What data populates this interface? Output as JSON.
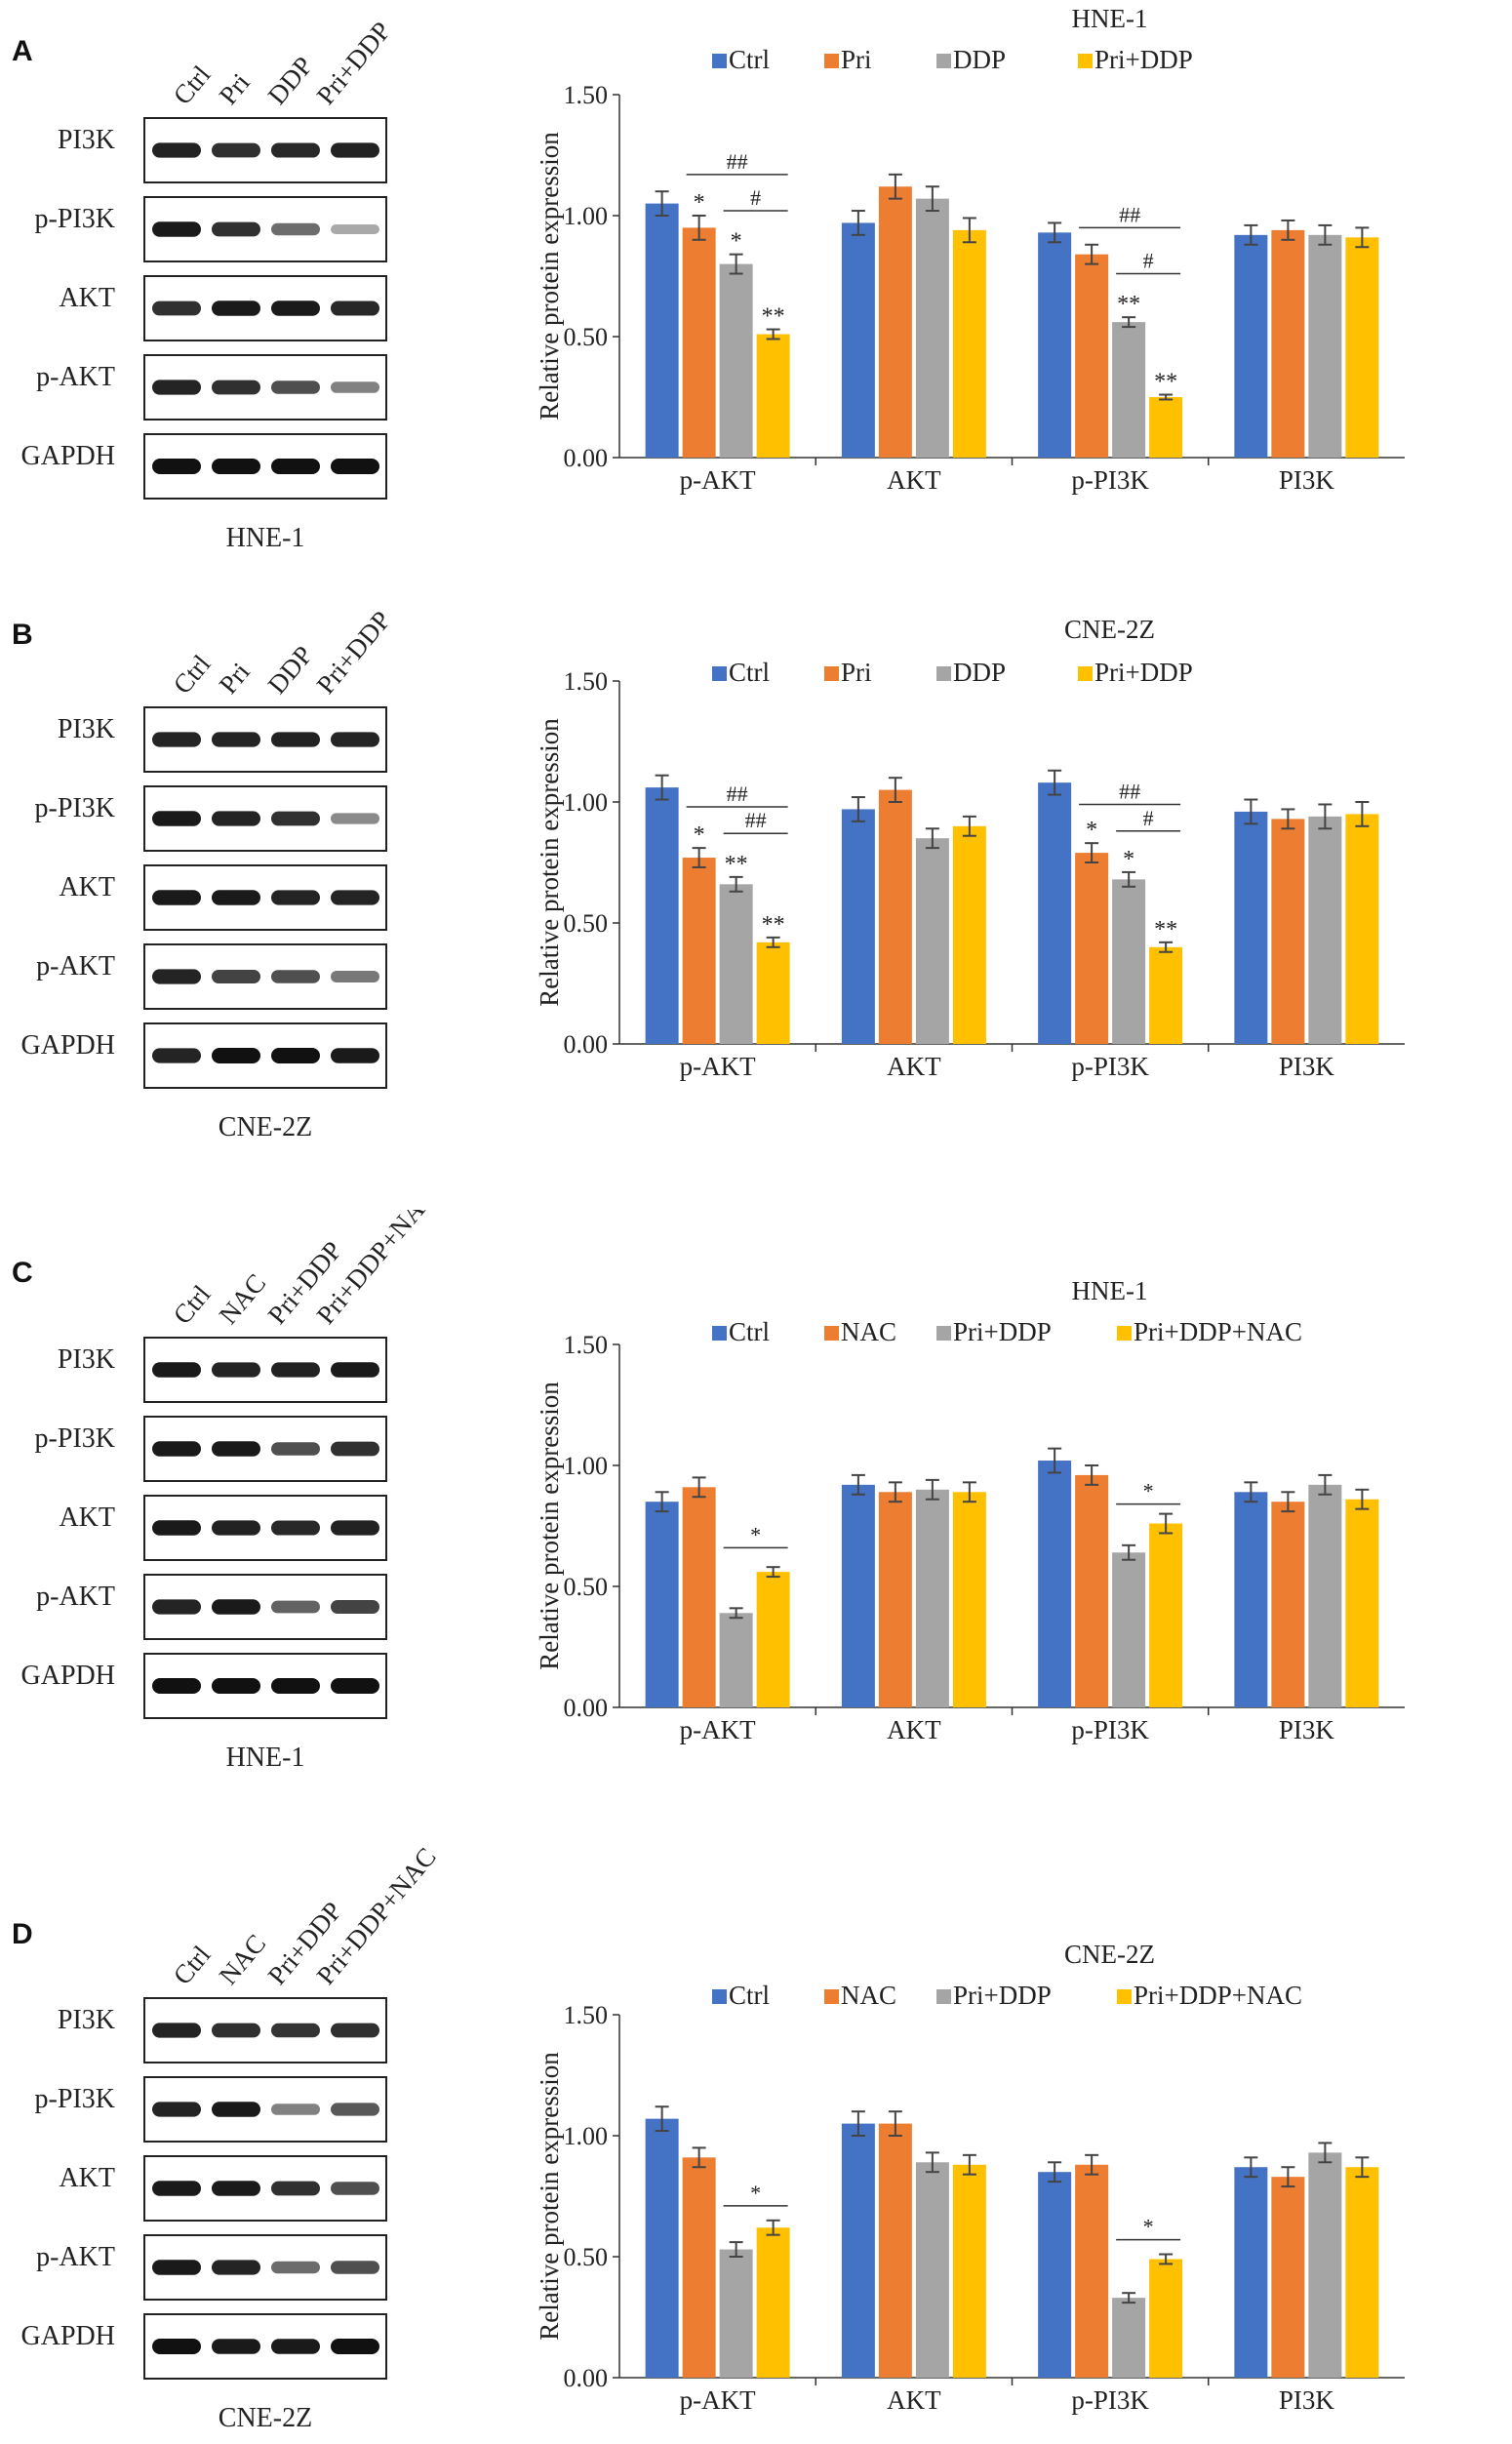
{
  "colors": {
    "series": [
      "#4472C4",
      "#ED7D31",
      "#A5A5A5",
      "#FFC000"
    ],
    "band": "#111111",
    "axis": "#333333"
  },
  "panels": [
    {
      "letter": "A",
      "blot": {
        "lanes": [
          "Ctrl",
          "Pri",
          "DDP",
          "Pri+DDP"
        ],
        "rows": [
          {
            "label": "PI3K",
            "intensity": [
              0.92,
              0.85,
              0.88,
              0.92
            ]
          },
          {
            "label": "p-PI3K",
            "intensity": [
              0.95,
              0.85,
              0.55,
              0.25
            ]
          },
          {
            "label": "AKT",
            "intensity": [
              0.85,
              0.95,
              0.95,
              0.88
            ]
          },
          {
            "label": "p-AKT",
            "intensity": [
              0.9,
              0.85,
              0.7,
              0.45
            ]
          },
          {
            "label": "GAPDH",
            "intensity": [
              1,
              1,
              1,
              1
            ]
          }
        ],
        "cell_line": "HNE-1"
      },
      "chart_data": {
        "type": "bar",
        "title": "HNE-1",
        "ylabel": "Relative protein expression",
        "ylim": [
          0,
          1.5
        ],
        "yticks": [
          "0.00",
          "0.50",
          "1.00",
          "1.50"
        ],
        "categories": [
          "p-AKT",
          "AKT",
          "p-PI3K",
          "PI3K"
        ],
        "legend_position": "top",
        "series": [
          {
            "name": "Ctrl",
            "values": [
              1.05,
              0.97,
              0.93,
              0.92
            ],
            "errors": [
              0.05,
              0.05,
              0.04,
              0.04
            ]
          },
          {
            "name": "Pri",
            "values": [
              0.95,
              1.12,
              0.84,
              0.94
            ],
            "errors": [
              0.05,
              0.05,
              0.04,
              0.04
            ]
          },
          {
            "name": "DDP",
            "values": [
              0.8,
              1.07,
              0.56,
              0.92
            ],
            "errors": [
              0.04,
              0.05,
              0.02,
              0.04
            ]
          },
          {
            "name": "Pri+DDP",
            "values": [
              0.51,
              0.94,
              0.25,
              0.91
            ],
            "errors": [
              0.02,
              0.05,
              0.01,
              0.04
            ]
          }
        ],
        "marks": [
          {
            "cat": 0,
            "ser": 1,
            "text": "*"
          },
          {
            "cat": 0,
            "ser": 2,
            "text": "*"
          },
          {
            "cat": 0,
            "ser": 3,
            "text": "**"
          },
          {
            "cat": 2,
            "ser": 2,
            "text": "**"
          },
          {
            "cat": 2,
            "ser": 3,
            "text": "**"
          }
        ],
        "brackets": [
          {
            "cat": 0,
            "from": 1,
            "to": 3,
            "y": 1.17,
            "text": "##"
          },
          {
            "cat": 0,
            "from": 2,
            "to": 3,
            "y": 1.02,
            "text": "#"
          },
          {
            "cat": 2,
            "from": 1,
            "to": 3,
            "y": 0.95,
            "text": "##"
          },
          {
            "cat": 2,
            "from": 2,
            "to": 3,
            "y": 0.76,
            "text": "#"
          }
        ]
      }
    },
    {
      "letter": "B",
      "blot": {
        "lanes": [
          "Ctrl",
          "Pri",
          "DDP",
          "Pri+DDP"
        ],
        "rows": [
          {
            "label": "PI3K",
            "intensity": [
              0.9,
              0.9,
              0.92,
              0.9
            ]
          },
          {
            "label": "p-PI3K",
            "intensity": [
              0.95,
              0.9,
              0.85,
              0.4
            ]
          },
          {
            "label": "AKT",
            "intensity": [
              0.95,
              0.95,
              0.9,
              0.9
            ]
          },
          {
            "label": "p-AKT",
            "intensity": [
              0.9,
              0.75,
              0.7,
              0.5
            ]
          },
          {
            "label": "GAPDH",
            "intensity": [
              0.9,
              1,
              1,
              0.95
            ]
          }
        ],
        "cell_line": "CNE-2Z"
      },
      "chart_data": {
        "type": "bar",
        "title": "CNE-2Z",
        "ylabel": "Relative protein expression",
        "ylim": [
          0,
          1.5
        ],
        "yticks": [
          "0.00",
          "0.50",
          "1.00",
          "1.50"
        ],
        "categories": [
          "p-AKT",
          "AKT",
          "p-PI3K",
          "PI3K"
        ],
        "legend_position": "top",
        "series": [
          {
            "name": "Ctrl",
            "values": [
              1.06,
              0.97,
              1.08,
              0.96
            ],
            "errors": [
              0.05,
              0.05,
              0.05,
              0.05
            ]
          },
          {
            "name": "Pri",
            "values": [
              0.77,
              1.05,
              0.79,
              0.93
            ],
            "errors": [
              0.04,
              0.05,
              0.04,
              0.04
            ]
          },
          {
            "name": "DDP",
            "values": [
              0.66,
              0.85,
              0.68,
              0.94
            ],
            "errors": [
              0.03,
              0.04,
              0.03,
              0.05
            ]
          },
          {
            "name": "Pri+DDP",
            "values": [
              0.42,
              0.9,
              0.4,
              0.95
            ],
            "errors": [
              0.02,
              0.04,
              0.02,
              0.05
            ]
          }
        ],
        "marks": [
          {
            "cat": 0,
            "ser": 1,
            "text": "*"
          },
          {
            "cat": 0,
            "ser": 2,
            "text": "**"
          },
          {
            "cat": 0,
            "ser": 3,
            "text": "**"
          },
          {
            "cat": 2,
            "ser": 1,
            "text": "*"
          },
          {
            "cat": 2,
            "ser": 2,
            "text": "*"
          },
          {
            "cat": 2,
            "ser": 3,
            "text": "**"
          }
        ],
        "brackets": [
          {
            "cat": 0,
            "from": 1,
            "to": 3,
            "y": 0.98,
            "text": "##"
          },
          {
            "cat": 0,
            "from": 2,
            "to": 3,
            "y": 0.87,
            "text": "##"
          },
          {
            "cat": 2,
            "from": 1,
            "to": 3,
            "y": 0.99,
            "text": "##"
          },
          {
            "cat": 2,
            "from": 2,
            "to": 3,
            "y": 0.88,
            "text": "#"
          }
        ]
      }
    },
    {
      "letter": "C",
      "blot": {
        "lanes": [
          "Ctrl",
          "NAC",
          "Pri+DDP",
          "Pri+DDP+NAC"
        ],
        "rows": [
          {
            "label": "PI3K",
            "intensity": [
              0.95,
              0.9,
              0.92,
              0.95
            ]
          },
          {
            "label": "p-PI3K",
            "intensity": [
              0.95,
              0.95,
              0.7,
              0.85
            ]
          },
          {
            "label": "AKT",
            "intensity": [
              0.95,
              0.92,
              0.88,
              0.92
            ]
          },
          {
            "label": "p-AKT",
            "intensity": [
              0.9,
              0.95,
              0.6,
              0.75
            ]
          },
          {
            "label": "GAPDH",
            "intensity": [
              1,
              1,
              1,
              1
            ]
          }
        ],
        "cell_line": "HNE-1"
      },
      "chart_data": {
        "type": "bar",
        "title": "HNE-1",
        "ylabel": "Relative protein expression",
        "ylim": [
          0,
          1.5
        ],
        "yticks": [
          "0.00",
          "0.50",
          "1.00",
          "1.50"
        ],
        "categories": [
          "p-AKT",
          "AKT",
          "p-PI3K",
          "PI3K"
        ],
        "legend_position": "top",
        "series": [
          {
            "name": "Ctrl",
            "values": [
              0.85,
              0.92,
              1.02,
              0.89
            ],
            "errors": [
              0.04,
              0.04,
              0.05,
              0.04
            ]
          },
          {
            "name": "NAC",
            "values": [
              0.91,
              0.89,
              0.96,
              0.85
            ],
            "errors": [
              0.04,
              0.04,
              0.04,
              0.04
            ]
          },
          {
            "name": "Pri+DDP",
            "values": [
              0.39,
              0.9,
              0.64,
              0.92
            ],
            "errors": [
              0.02,
              0.04,
              0.03,
              0.04
            ]
          },
          {
            "name": "Pri+DDP+NAC",
            "values": [
              0.56,
              0.89,
              0.76,
              0.86
            ],
            "errors": [
              0.02,
              0.04,
              0.04,
              0.04
            ]
          }
        ],
        "marks": [],
        "brackets": [
          {
            "cat": 0,
            "from": 2,
            "to": 3,
            "y": 0.66,
            "text": "*"
          },
          {
            "cat": 2,
            "from": 2,
            "to": 3,
            "y": 0.84,
            "text": "*"
          }
        ]
      }
    },
    {
      "letter": "D",
      "blot": {
        "lanes": [
          "Ctrl",
          "NAC",
          "Pri+DDP",
          "Pri+DDP+NAC"
        ],
        "rows": [
          {
            "label": "PI3K",
            "intensity": [
              0.9,
              0.85,
              0.82,
              0.85
            ]
          },
          {
            "label": "p-PI3K",
            "intensity": [
              0.9,
              0.95,
              0.45,
              0.65
            ]
          },
          {
            "label": "AKT",
            "intensity": [
              0.95,
              0.95,
              0.85,
              0.7
            ]
          },
          {
            "label": "p-AKT",
            "intensity": [
              0.95,
              0.9,
              0.55,
              0.7
            ]
          },
          {
            "label": "GAPDH",
            "intensity": [
              1,
              0.95,
              0.95,
              1
            ]
          }
        ],
        "cell_line": "CNE-2Z"
      },
      "chart_data": {
        "type": "bar",
        "title": "CNE-2Z",
        "ylabel": "Relative protein expression",
        "ylim": [
          0,
          1.5
        ],
        "yticks": [
          "0.00",
          "0.50",
          "1.00",
          "1.50"
        ],
        "categories": [
          "p-AKT",
          "AKT",
          "p-PI3K",
          "PI3K"
        ],
        "legend_position": "top",
        "series": [
          {
            "name": "Ctrl",
            "values": [
              1.07,
              1.05,
              0.85,
              0.87
            ],
            "errors": [
              0.05,
              0.05,
              0.04,
              0.04
            ]
          },
          {
            "name": "NAC",
            "values": [
              0.91,
              1.05,
              0.88,
              0.83
            ],
            "errors": [
              0.04,
              0.05,
              0.04,
              0.04
            ]
          },
          {
            "name": "Pri+DDP",
            "values": [
              0.53,
              0.89,
              0.33,
              0.93
            ],
            "errors": [
              0.03,
              0.04,
              0.02,
              0.04
            ]
          },
          {
            "name": "Pri+DDP+NAC",
            "values": [
              0.62,
              0.88,
              0.49,
              0.87
            ],
            "errors": [
              0.03,
              0.04,
              0.02,
              0.04
            ]
          }
        ],
        "marks": [],
        "brackets": [
          {
            "cat": 0,
            "from": 2,
            "to": 3,
            "y": 0.71,
            "text": "*"
          },
          {
            "cat": 2,
            "from": 2,
            "to": 3,
            "y": 0.57,
            "text": "*"
          }
        ]
      }
    }
  ]
}
